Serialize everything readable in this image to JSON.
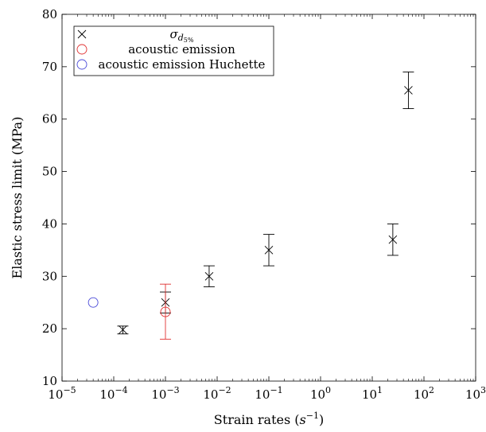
{
  "chart_data": {
    "type": "scatter",
    "xscale": "log",
    "xlim": [
      1e-05,
      1000
    ],
    "ylim": [
      10,
      80
    ],
    "xlabel": "Strain rates (s^-1)",
    "xlabel_parts": {
      "pre": "Strain rates (",
      "var": "s",
      "exp": "−1",
      "post": ")"
    },
    "ylabel": "Elastic stress limit (MPa)",
    "grid": false,
    "legend_position": "top-left",
    "x_ticks": [
      {
        "base": "10",
        "exp": "−5"
      },
      {
        "base": "10",
        "exp": "−4"
      },
      {
        "base": "10",
        "exp": "−3"
      },
      {
        "base": "10",
        "exp": "−2"
      },
      {
        "base": "10",
        "exp": "−1"
      },
      {
        "base": "10",
        "exp": "0"
      },
      {
        "base": "10",
        "exp": "1"
      },
      {
        "base": "10",
        "exp": "2"
      },
      {
        "base": "10",
        "exp": "3"
      }
    ],
    "y_ticks": [
      "10",
      "20",
      "30",
      "40",
      "50",
      "60",
      "70",
      "80"
    ],
    "series": [
      {
        "name": "σ_{d5%}",
        "name_parts": {
          "main": "σ",
          "sub": "d",
          "subsub": "5%"
        },
        "marker": "x",
        "color": "#000000",
        "points": [
          {
            "x": 0.00015,
            "y": 19.8,
            "ylow": 19.0,
            "yhigh": 20.5
          },
          {
            "x": 0.001,
            "y": 25.0,
            "ylow": 23.0,
            "yhigh": 27.0
          },
          {
            "x": 0.007,
            "y": 30.0,
            "ylow": 28.0,
            "yhigh": 32.0
          },
          {
            "x": 0.1,
            "y": 35.0,
            "ylow": 32.0,
            "yhigh": 38.0
          },
          {
            "x": 25,
            "y": 37.0,
            "ylow": 34.0,
            "yhigh": 40.0
          },
          {
            "x": 50,
            "y": 65.5,
            "ylow": 62.0,
            "yhigh": 69.0
          }
        ]
      },
      {
        "name": "acoustic emission",
        "marker": "circle",
        "color": "#e03030",
        "points": [
          {
            "x": 0.001,
            "y": 23.2,
            "ylow": 18.0,
            "yhigh": 28.5
          }
        ]
      },
      {
        "name": "acoustic emission Huchette",
        "marker": "circle",
        "color": "#4a4ad8",
        "points": [
          {
            "x": 4e-05,
            "y": 25.0
          }
        ]
      }
    ]
  }
}
